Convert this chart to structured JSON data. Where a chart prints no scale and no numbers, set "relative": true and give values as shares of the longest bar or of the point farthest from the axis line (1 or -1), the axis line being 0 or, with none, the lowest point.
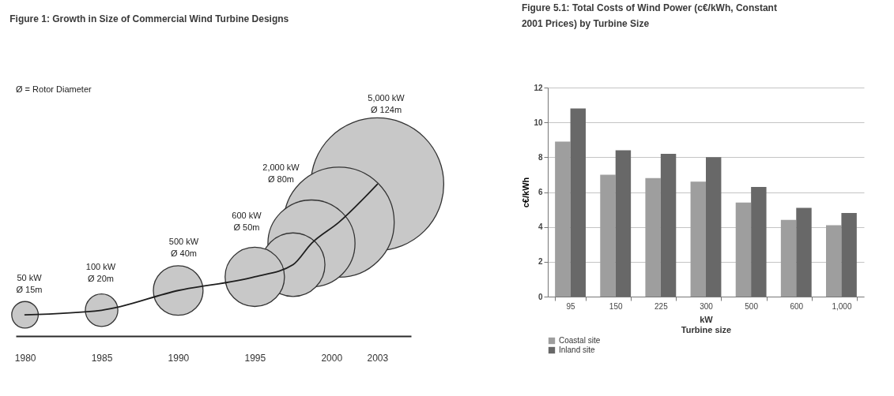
{
  "chart_data": [
    {
      "type": "bubble",
      "title": "Figure 1: Growth in Size of Commercial Wind Turbine Designs",
      "relative": true,
      "tick_labels": "x",
      "grid": false,
      "x": [
        1980,
        1985,
        1990,
        1995,
        1997.5,
        1998.7,
        2000.5,
        2003
      ],
      "xlim": [
        1979.4,
        2005.2
      ],
      "xticks": [
        1980,
        1985,
        1990,
        1995,
        2000,
        2003
      ],
      "series": [
        {
          "type": "bubble",
          "color": "#c8c8c8",
          "values": [
            0.14,
            0.17,
            0.3,
            0.39,
            0.47,
            0.61,
            0.75,
            1
          ],
          "sizes": [
            0.04,
            0.06,
            0.14,
            0.2,
            0.23,
            0.43,
            0.69,
            1
          ]
        },
        {
          "type": "line",
          "color": "#1e1e1e",
          "values": [
            0.14,
            0.17,
            0.3,
            0.39,
            0.47,
            0.61,
            0.75,
            1
          ]
        }
      ],
      "annotations": [
        "Ø = Rotor Diameter",
        "50 kW\nØ 15m",
        "100 kW\nØ 20m",
        "500 kW\nØ 40m",
        "600 kW\nØ 50m",
        "2,000 kW\nØ 80m",
        "5,000 kW\nØ 124m"
      ]
    },
    {
      "type": "bar",
      "title": "Figure 5.1: Total Costs of Wind Power (c€/kWh, Constant 2001 Prices) by Turbine Size",
      "xlabel": "kW\nTurbine size",
      "ylabel": "c€/kWh",
      "categories": [
        "95",
        "150",
        "225",
        "300",
        "500",
        "600",
        "1,000"
      ],
      "series": [
        {
          "name": "Coastal site",
          "color": "#9e9e9e",
          "values": [
            8.9,
            7.0,
            6.8,
            6.6,
            5.4,
            4.4,
            4.1
          ]
        },
        {
          "name": "Inland site",
          "color": "#686868",
          "values": [
            10.8,
            8.4,
            8.2,
            8.0,
            6.3,
            5.1,
            4.8
          ]
        }
      ],
      "ylim": [
        0,
        12
      ],
      "yticks": [
        0,
        2,
        4,
        6,
        8,
        10,
        12
      ],
      "grid": "y",
      "legend": "bottom left"
    }
  ]
}
